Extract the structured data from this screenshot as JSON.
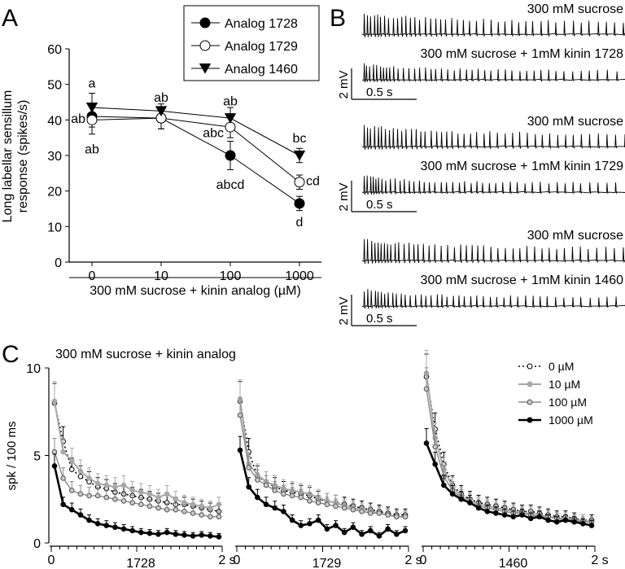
{
  "colors": {
    "black": "#000000",
    "gray": "#9a9a9a",
    "darkgray": "#707070",
    "white": "#ffffff"
  },
  "panel_labels": {
    "a": "A",
    "b": "B",
    "c": "C"
  },
  "chart_data": [
    {
      "panel": "A",
      "type": "line",
      "title": "",
      "xlabel": "300 mM sucrose + kinin analog (µM)",
      "ylabel_line1": "Long labellar sensillum",
      "ylabel_line2": "response (spikes/s)",
      "categories": [
        "0",
        "10",
        "100",
        "1000"
      ],
      "ylim": [
        0,
        60
      ],
      "yticks": [
        "0",
        "10",
        "20",
        "30",
        "40",
        "50",
        "60"
      ],
      "legend_position": "top-right",
      "series": [
        {
          "name": "Analog 1728",
          "marker": "filled-circle",
          "values": [
            41,
            40.5,
            30,
            16.5
          ],
          "err": [
            3,
            3,
            4,
            2
          ]
        },
        {
          "name": "Analog 1729",
          "marker": "open-circle",
          "values": [
            40,
            40.5,
            38,
            22.5
          ],
          "err": [
            4,
            3,
            3,
            2
          ]
        },
        {
          "name": "Analog 1460",
          "marker": "filled-triangle",
          "values": [
            43.5,
            42.5,
            40.5,
            30
          ],
          "err": [
            4,
            2,
            3,
            2
          ]
        }
      ],
      "annotations": [
        {
          "text": "a",
          "cat": 0,
          "y": 50.5
        },
        {
          "text": "ab",
          "cat": 0,
          "y": 40.5,
          "side": "left"
        },
        {
          "text": "ab",
          "cat": 0,
          "y": 32
        },
        {
          "text": "ab",
          "cat": 1,
          "y": 46.5
        },
        {
          "text": "ab",
          "cat": 2,
          "y": 45.5
        },
        {
          "text": "abc",
          "cat": 2,
          "y": 36.5,
          "side": "left"
        },
        {
          "text": "abcd",
          "cat": 2,
          "y": 22
        },
        {
          "text": "bc",
          "cat": 3,
          "y": 35
        },
        {
          "text": "cd",
          "cat": 3,
          "y": 23,
          "side": "right"
        },
        {
          "text": "d",
          "cat": 3,
          "y": 11.5
        }
      ]
    },
    {
      "panel": "C",
      "type": "line",
      "title": "300 mM sucrose + kinin analog",
      "ylabel": "spk / 100 ms",
      "ylim": [
        0,
        10
      ],
      "yticks": [
        "0",
        "5",
        "10"
      ],
      "xlim": [
        0,
        2
      ],
      "x_tick_start": "0",
      "x_tick_end": "2 s",
      "legend_position": "top-right",
      "legend": [
        {
          "name": "0 µM",
          "style": "dotted-black-open"
        },
        {
          "name": "10 µM",
          "style": "lightgray-filled"
        },
        {
          "name": "100 µM",
          "style": "gray-open"
        },
        {
          "name": "1000 µM",
          "style": "thick-black-filled"
        }
      ],
      "subplots": [
        {
          "label": "1728",
          "series": [
            {
              "name": "0 µM",
              "values": [
                8.0,
                5.8,
                4.2,
                3.8,
                3.5,
                3.2,
                3.1,
                2.9,
                2.8,
                2.7,
                2.6,
                2.5,
                2.4,
                2.3,
                2.2,
                2.2,
                2.1,
                2.0,
                1.9,
                1.8
              ]
            },
            {
              "name": "10 µM",
              "values": [
                8.1,
                5.2,
                4.7,
                4.1,
                3.7,
                3.4,
                3.3,
                3.2,
                3.3,
                3.0,
                2.9,
                2.8,
                2.6,
                2.8,
                2.5,
                2.3,
                2.2,
                2.1,
                2.0,
                2.2
              ]
            },
            {
              "name": "100 µM",
              "values": [
                5.2,
                3.7,
                3.0,
                2.8,
                2.7,
                2.7,
                2.6,
                2.5,
                2.4,
                2.3,
                2.2,
                2.1,
                2.0,
                1.9,
                1.9,
                1.8,
                1.7,
                1.6,
                1.5,
                1.5
              ]
            },
            {
              "name": "1000 µM",
              "values": [
                4.4,
                2.2,
                1.9,
                1.6,
                1.3,
                1.1,
                1.0,
                0.9,
                0.8,
                0.7,
                0.6,
                0.55,
                0.5,
                0.6,
                0.5,
                0.45,
                0.4,
                0.45,
                0.4,
                0.35
              ]
            }
          ]
        },
        {
          "label": "1729",
          "series": [
            {
              "name": "0 µM",
              "values": [
                8.1,
                5.2,
                3.8,
                3.5,
                3.2,
                3.0,
                2.9,
                2.8,
                2.7,
                2.5,
                2.4,
                2.3,
                2.2,
                2.1,
                2.0,
                1.9,
                1.8,
                1.7,
                1.6,
                1.6
              ]
            },
            {
              "name": "10 µM",
              "values": [
                8.2,
                4.5,
                3.9,
                3.5,
                3.3,
                3.1,
                3.0,
                2.9,
                2.8,
                2.6,
                2.4,
                2.3,
                2.1,
                2.0,
                1.9,
                1.8,
                1.7,
                1.6,
                1.5,
                1.5
              ]
            },
            {
              "name": "100 µM",
              "values": [
                7.3,
                4.3,
                3.6,
                3.3,
                3.0,
                2.8,
                2.7,
                2.6,
                2.4,
                2.3,
                2.2,
                2.1,
                2.0,
                1.9,
                1.8,
                1.7,
                1.7,
                1.6,
                1.5,
                1.5
              ]
            },
            {
              "name": "1000 µM",
              "values": [
                5.3,
                3.2,
                2.6,
                2.2,
                2.0,
                1.8,
                1.3,
                1.0,
                1.1,
                1.3,
                0.8,
                1.0,
                0.6,
                0.9,
                0.5,
                0.7,
                0.4,
                0.8,
                0.5,
                0.7
              ]
            }
          ]
        },
        {
          "label": "1460",
          "series": [
            {
              "name": "0 µM",
              "values": [
                9.5,
                6.5,
                4.5,
                3.3,
                2.8,
                2.5,
                2.3,
                2.2,
                2.1,
                2.0,
                1.9,
                1.8,
                1.8,
                1.7,
                1.6,
                1.5,
                1.5,
                1.4,
                1.3,
                1.3
              ]
            },
            {
              "name": "10 µM",
              "values": [
                9.7,
                6.0,
                4.2,
                3.2,
                2.7,
                2.4,
                2.2,
                2.1,
                2.0,
                1.9,
                1.8,
                1.7,
                1.7,
                1.6,
                1.5,
                1.4,
                1.4,
                1.3,
                1.3,
                1.2
              ]
            },
            {
              "name": "100 µM",
              "values": [
                8.8,
                5.5,
                3.8,
                3.0,
                2.6,
                2.3,
                2.1,
                2.0,
                1.9,
                1.8,
                1.7,
                1.7,
                1.6,
                1.5,
                1.5,
                1.4,
                1.3,
                1.3,
                1.2,
                1.2
              ]
            },
            {
              "name": "1000 µM",
              "values": [
                5.7,
                4.5,
                3.3,
                2.8,
                2.5,
                2.3,
                2.0,
                1.8,
                1.7,
                1.6,
                1.5,
                1.6,
                1.4,
                1.5,
                1.3,
                1.2,
                1.3,
                1.2,
                1.1,
                1.0
              ]
            }
          ]
        }
      ]
    }
  ],
  "panel_b": {
    "scale_mv": "2 mV",
    "scale_s": "0.5 s",
    "groups": [
      {
        "analog": "1728",
        "trace_top": "300 mM sucrose",
        "trace_bottom": "300 mM sucrose + 1mM kinin 1728"
      },
      {
        "analog": "1729",
        "trace_top": "300 mM sucrose",
        "trace_bottom": "300 mM sucrose + 1mM kinin 1729"
      },
      {
        "analog": "1460",
        "trace_top": "300 mM sucrose",
        "trace_bottom": "300 mM sucrose + 1mM kinin 1460"
      }
    ]
  }
}
